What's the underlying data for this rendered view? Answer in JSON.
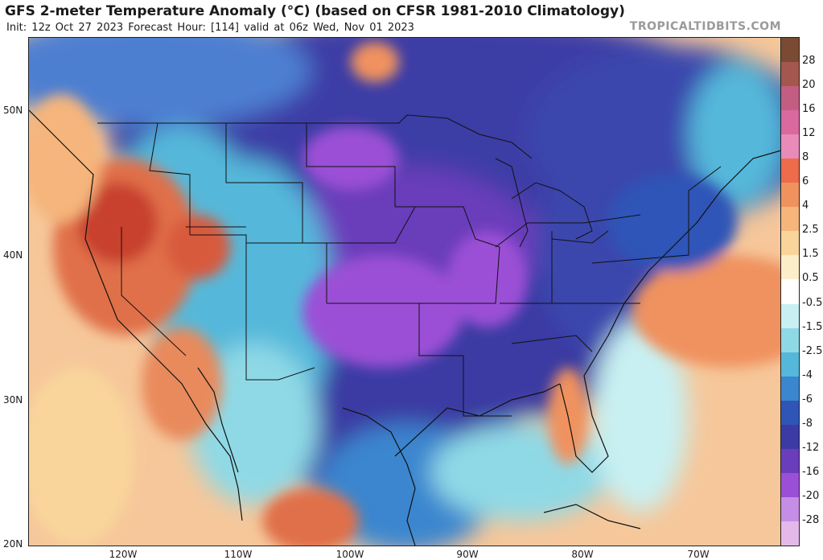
{
  "title": "GFS 2-meter Temperature Anomaly (°C) (based on CFSR 1981-2010 Climatology)",
  "subtitle": "Init: 12z Oct 27 2023   Forecast Hour: [114]   valid at 06z Wed, Nov 01 2023",
  "brand": "TROPICALTIDBITS.COM",
  "lat_labels": [
    "50N",
    "40N",
    "30N",
    "20N"
  ],
  "lon_labels": [
    "120W",
    "110W",
    "100W",
    "90W",
    "80W",
    "70W"
  ],
  "colorbar": {
    "labels": [
      "28",
      "20",
      "16",
      "12",
      "8",
      "6",
      "4",
      "2.5",
      "1.5",
      "0.5",
      "-0.5",
      "-1.5",
      "-2.5",
      "-4",
      "-6",
      "-8",
      "-12",
      "-16",
      "-20",
      "-28"
    ],
    "colors": [
      "#7a4a33",
      "#a3574f",
      "#c45d82",
      "#d9699e",
      "#e98bb8",
      "#ee6b4b",
      "#f0925e",
      "#f5b57b",
      "#f9d59b",
      "#fbeec9",
      "#ffffff",
      "#c8f0f2",
      "#8fd9e6",
      "#55b8da",
      "#3a86cf",
      "#2f55b7",
      "#3b3ba3",
      "#6a3dbb",
      "#9b4fd6",
      "#c58ee6",
      "#e4b9ea"
    ]
  }
}
